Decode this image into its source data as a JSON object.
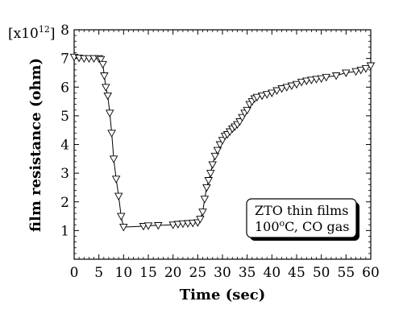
{
  "chart_data": {
    "type": "line",
    "xlabel": "Time (sec)",
    "ylabel": "film resistance (ohm)",
    "y_multiplier": {
      "base": "[x10",
      "exponent": "12",
      "close": "]"
    },
    "xlim": [
      0,
      60
    ],
    "ylim": [
      0,
      8
    ],
    "x_ticks": [
      "0",
      "5",
      "10",
      "15",
      "20",
      "25",
      "30",
      "35",
      "40",
      "45",
      "50",
      "55",
      "60"
    ],
    "y_ticks": [
      "1",
      "2",
      "3",
      "4",
      "5",
      "6",
      "7",
      "8"
    ],
    "annotation": {
      "line1": "ZTO thin films",
      "line2_prefix": "100",
      "line2_degree": "o",
      "line2_suffix": "C, CO gas"
    },
    "marker": "triangle-down",
    "series": [
      {
        "x": [
          0,
          1,
          2,
          3,
          4,
          5,
          5.4,
          5.8,
          6.1,
          6.4,
          6.8,
          7.2,
          7.6,
          8.0,
          8.5,
          9.0,
          9.5,
          10,
          14,
          15,
          17,
          20,
          21,
          22,
          23,
          24,
          25,
          25.5,
          26,
          26.4,
          26.8,
          27.2,
          27.6,
          28,
          28.5,
          29,
          29.5,
          30,
          30.5,
          31,
          31.5,
          32,
          32.5,
          33,
          33.5,
          34,
          34.5,
          35,
          35.5,
          36,
          36.5,
          37,
          38,
          39,
          40,
          41,
          42,
          43,
          44,
          45,
          46,
          47,
          48,
          49,
          50,
          51,
          53,
          55,
          57,
          58,
          59,
          60
        ],
        "y": [
          7.05,
          7.02,
          7.0,
          7.0,
          7.0,
          7.0,
          6.97,
          6.8,
          6.4,
          6.0,
          5.7,
          5.1,
          4.4,
          3.5,
          2.8,
          2.2,
          1.5,
          1.12,
          1.15,
          1.17,
          1.18,
          1.2,
          1.22,
          1.24,
          1.25,
          1.26,
          1.28,
          1.4,
          1.65,
          2.1,
          2.5,
          2.75,
          3.0,
          3.3,
          3.6,
          3.8,
          4.0,
          4.15,
          4.3,
          4.35,
          4.45,
          4.55,
          4.62,
          4.7,
          4.8,
          4.95,
          5.1,
          5.2,
          5.4,
          5.5,
          5.6,
          5.65,
          5.7,
          5.75,
          5.8,
          5.88,
          5.95,
          6.0,
          6.05,
          6.1,
          6.18,
          6.22,
          6.25,
          6.28,
          6.3,
          6.35,
          6.4,
          6.5,
          6.55,
          6.6,
          6.65,
          6.75
        ]
      }
    ]
  }
}
